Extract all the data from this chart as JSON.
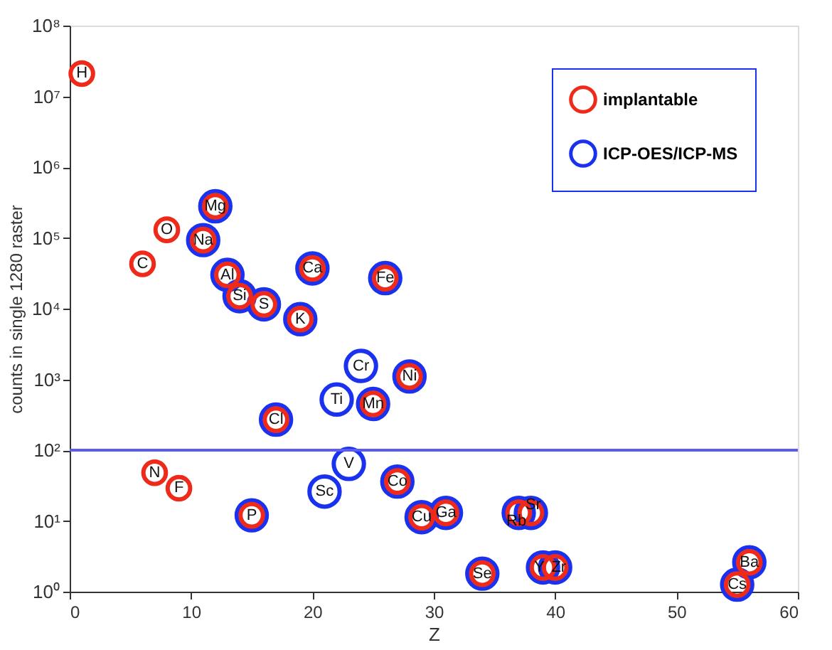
{
  "chart_data": {
    "type": "scatter",
    "xlabel": "Z",
    "ylabel": "counts in single 1280 raster",
    "series": [
      {
        "name": "implantable",
        "color": "#ee2a1b",
        "x": [
          1,
          6,
          7,
          8,
          9,
          11,
          12,
          13,
          14,
          15,
          16,
          17,
          19,
          20,
          25,
          26,
          27,
          28,
          29,
          31,
          34,
          37,
          38,
          39,
          40,
          55,
          56
        ],
        "values": [
          21000000,
          43000,
          48,
          130000,
          29,
          93000,
          280000,
          30000,
          15000,
          12,
          11500,
          270,
          7100,
          37000,
          450,
          27000,
          36,
          1100,
          11.3,
          13,
          1.8,
          13,
          13,
          2.2,
          2.2,
          1.26,
          2.6
        ]
      },
      {
        "name": "ICP-OES/ICP-MS",
        "color": "#1a32f0",
        "x": [
          11,
          12,
          13,
          14,
          15,
          16,
          17,
          19,
          20,
          21,
          22,
          23,
          24,
          25,
          26,
          27,
          28,
          29,
          31,
          34,
          37,
          38,
          39,
          40,
          55,
          56
        ],
        "values": [
          93000,
          280000,
          30000,
          15000,
          12,
          11500,
          270,
          7100,
          37000,
          26,
          520,
          64,
          1550,
          450,
          27000,
          36,
          1100,
          11.3,
          13,
          1.8,
          13,
          13,
          2.2,
          2.2,
          1.26,
          2.6
        ]
      }
    ],
    "annotations": [
      {
        "text": "H",
        "x": 1,
        "y": 21000000
      },
      {
        "text": "C",
        "x": 6,
        "y": 43000
      },
      {
        "text": "N",
        "x": 7,
        "y": 48
      },
      {
        "text": "O",
        "x": 8,
        "y": 130000
      },
      {
        "text": "F",
        "x": 9,
        "y": 29
      },
      {
        "text": "Na",
        "x": 11,
        "y": 93000
      },
      {
        "text": "Mg",
        "x": 12,
        "y": 280000
      },
      {
        "text": "Al",
        "x": 13,
        "y": 30000
      },
      {
        "text": "Si",
        "x": 14,
        "y": 15000
      },
      {
        "text": "P",
        "x": 15,
        "y": 12
      },
      {
        "text": "S",
        "x": 16,
        "y": 11500
      },
      {
        "text": "Cl",
        "x": 17,
        "y": 270
      },
      {
        "text": "K",
        "x": 19,
        "y": 7100
      },
      {
        "text": "Ca",
        "x": 20,
        "y": 37000
      },
      {
        "text": "Sc",
        "x": 21,
        "y": 26
      },
      {
        "text": "Ti",
        "x": 22,
        "y": 520
      },
      {
        "text": "V",
        "x": 23,
        "y": 64
      },
      {
        "text": "Cr",
        "x": 24,
        "y": 1550
      },
      {
        "text": "Mn",
        "x": 25,
        "y": 450
      },
      {
        "text": "Fe",
        "x": 26,
        "y": 27000
      },
      {
        "text": "Co",
        "x": 27,
        "y": 36
      },
      {
        "text": "Ni",
        "x": 28,
        "y": 1100
      },
      {
        "text": "Cu",
        "x": 29,
        "y": 11.3
      },
      {
        "text": "Ga",
        "x": 31,
        "y": 13
      },
      {
        "text": "Se",
        "x": 34,
        "y": 1.8
      },
      {
        "text": "Rb",
        "x": 36.8,
        "y": 10
      },
      {
        "text": "Sr",
        "x": 38.2,
        "y": 17
      },
      {
        "text": "Y",
        "x": 38.7,
        "y": 2.2
      },
      {
        "text": "Zr",
        "x": 40.3,
        "y": 2.2
      },
      {
        "text": "Cs",
        "x": 55,
        "y": 1.26
      },
      {
        "text": "Ba",
        "x": 56,
        "y": 2.6
      }
    ],
    "ref_lines": [
      {
        "axis": "y",
        "value": 100,
        "color": "#5c5cf5"
      }
    ],
    "log": "y",
    "marker": "circle",
    "legend": "top right",
    "grid": false,
    "xlim": [
      0,
      60
    ],
    "xticks": [
      0,
      10,
      20,
      30,
      40,
      50,
      60
    ],
    "ylim": [
      1,
      100000000
    ],
    "yticks": [
      {
        "value": 1,
        "label": "10⁰"
      },
      {
        "value": 10,
        "label": "10¹"
      },
      {
        "value": 100,
        "label": "10²"
      },
      {
        "value": 1000,
        "label": "10³"
      },
      {
        "value": 10000,
        "label": "10⁴"
      },
      {
        "value": 100000,
        "label": "10⁵"
      },
      {
        "value": 1000000,
        "label": "10⁶"
      },
      {
        "value": 10000000,
        "label": "10⁷"
      },
      {
        "value": 100000000,
        "label": "10⁸"
      }
    ]
  }
}
